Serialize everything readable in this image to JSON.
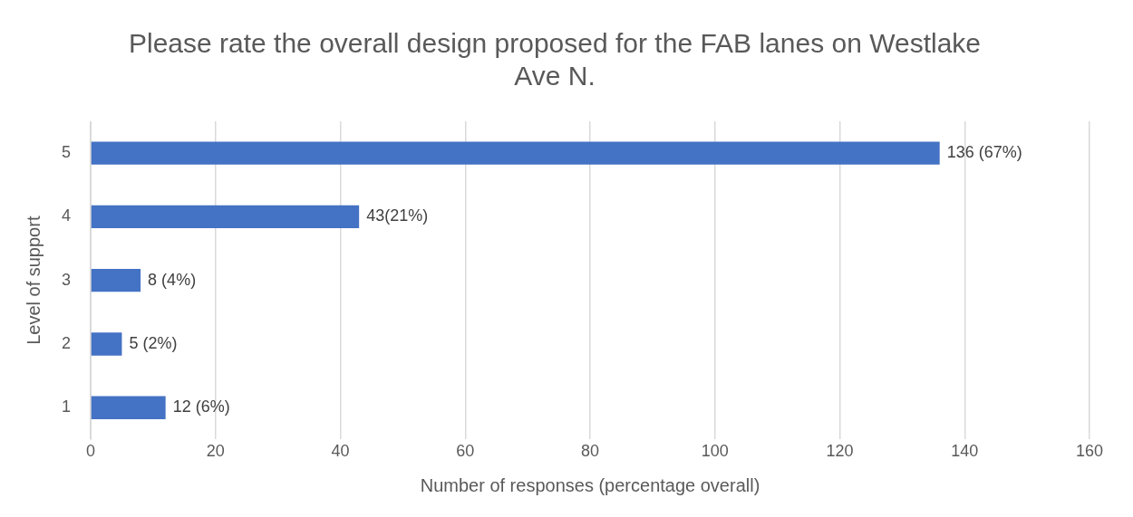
{
  "chart_data": {
    "type": "bar",
    "orientation": "horizontal",
    "title": "Please rate the overall design proposed for the FAB lanes on Westlake Ave N.",
    "xlabel": "Number of responses (percentage overall)",
    "ylabel": "Level of support",
    "categories": [
      "5",
      "4",
      "3",
      "2",
      "1"
    ],
    "values": [
      136,
      43,
      8,
      5,
      12
    ],
    "value_labels": [
      "136 (67%)",
      "43(21%)",
      "8 (4%)",
      "5 (2%)",
      "12 (6%)"
    ],
    "color": "#4472c4",
    "xlim": [
      0,
      160
    ],
    "xticks": [
      0,
      20,
      40,
      60,
      80,
      100,
      120,
      140,
      160
    ],
    "grid": "x",
    "legend": false
  }
}
